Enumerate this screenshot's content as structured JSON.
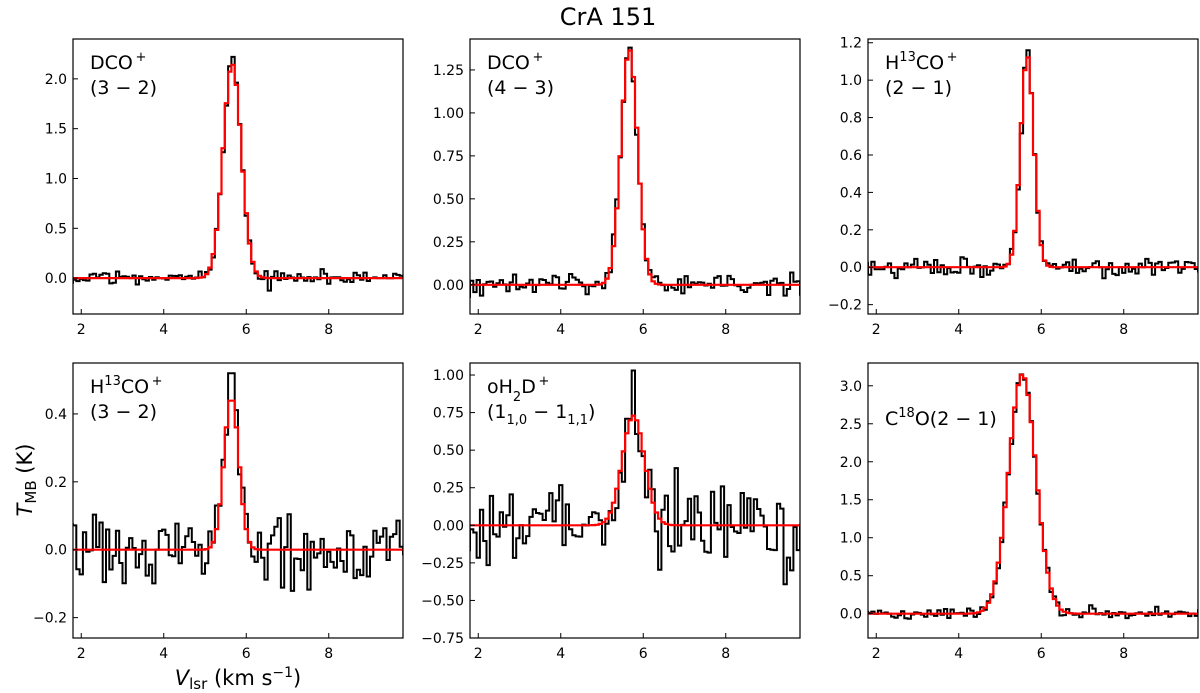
{
  "figure": {
    "title": "CrA 151",
    "xlabel_main": "V",
    "xlabel_sub": "lsr",
    "xlabel_unit": "(km s",
    "xlabel_exp": "−1",
    "xlabel_close": ")",
    "ylabel_main": "T",
    "ylabel_sub": "MB",
    "ylabel_unit": "(K)"
  },
  "chart_data": [
    {
      "type": "line",
      "molecule": "DCO⁺",
      "transition": "(3 − 2)",
      "label_parts": [
        [
          "DCO",
          0
        ],
        [
          "+",
          1
        ]
      ],
      "label_line2": "(3 − 2)",
      "xlim": [
        1.8,
        9.8
      ],
      "ylim": [
        -0.36,
        2.4
      ],
      "xticks": [
        2,
        4,
        6,
        8
      ],
      "xtick_labels": [
        "2",
        "4",
        "6",
        "8"
      ],
      "yticks": [
        0.0,
        0.5,
        1.0,
        1.5,
        2.0
      ],
      "ytick_labels": [
        "0.0",
        "0.5",
        "1.0",
        "1.5",
        "2.0"
      ],
      "center": 5.62,
      "peak": 2.15,
      "sigma": 0.22,
      "obs_peak": 2.22,
      "noise": 0.05,
      "seed": 11,
      "series": [
        {
          "name": "observed",
          "color": "#000000"
        },
        {
          "name": "fit",
          "color": "#ff0000"
        }
      ]
    },
    {
      "type": "line",
      "molecule": "DCO⁺",
      "transition": "(4 − 3)",
      "label_parts": [
        [
          "DCO",
          0
        ],
        [
          "+",
          1
        ]
      ],
      "label_line2": "(4 − 3)",
      "xlim": [
        1.8,
        9.8
      ],
      "ylim": [
        -0.17,
        1.43
      ],
      "xticks": [
        2,
        4,
        6,
        8
      ],
      "xtick_labels": [
        "2",
        "4",
        "6",
        "8"
      ],
      "yticks": [
        0.0,
        0.25,
        0.5,
        0.75,
        1.0,
        1.25
      ],
      "ytick_labels": [
        "0.00",
        "0.25",
        "0.50",
        "0.75",
        "1.00",
        "1.25"
      ],
      "center": 5.62,
      "peak": 1.37,
      "sigma": 0.2,
      "obs_peak": 1.38,
      "noise": 0.04,
      "seed": 23,
      "series": [
        {
          "name": "observed",
          "color": "#000000"
        },
        {
          "name": "fit",
          "color": "#ff0000"
        }
      ]
    },
    {
      "type": "line",
      "molecule": "H¹³CO⁺",
      "transition": "(2 − 1)",
      "label_parts": [
        [
          "H",
          0
        ],
        [
          "13",
          1
        ],
        [
          "CO",
          0
        ],
        [
          "+",
          1
        ]
      ],
      "label_line2": "(2 − 1)",
      "xlim": [
        1.8,
        9.8
      ],
      "ylim": [
        -0.25,
        1.22
      ],
      "xticks": [
        2,
        4,
        6,
        8
      ],
      "xtick_labels": [
        "2",
        "4",
        "6",
        "8"
      ],
      "yticks": [
        -0.2,
        0.0,
        0.2,
        0.4,
        0.6,
        0.8,
        1.0,
        1.2
      ],
      "ytick_labels": [
        "−0.2",
        "0.0",
        "0.2",
        "0.4",
        "0.6",
        "0.8",
        "1.0",
        "1.2"
      ],
      "center": 5.62,
      "peak": 1.13,
      "sigma": 0.16,
      "obs_peak": 1.16,
      "noise": 0.04,
      "seed": 37,
      "series": [
        {
          "name": "observed",
          "color": "#000000"
        },
        {
          "name": "fit",
          "color": "#ff0000"
        }
      ]
    },
    {
      "type": "line",
      "molecule": "H¹³CO⁺",
      "transition": "(3 − 2)",
      "label_parts": [
        [
          "H",
          0
        ],
        [
          "13",
          1
        ],
        [
          "CO",
          0
        ],
        [
          "+",
          1
        ]
      ],
      "label_line2": "(3 − 2)",
      "xlim": [
        1.8,
        9.8
      ],
      "ylim": [
        -0.26,
        0.55
      ],
      "xticks": [
        2,
        4,
        6,
        8
      ],
      "xtick_labels": [
        "2",
        "4",
        "6",
        "8"
      ],
      "yticks": [
        -0.2,
        0.0,
        0.2,
        0.4
      ],
      "ytick_labels": [
        "−0.2",
        "0.0",
        "0.2",
        "0.4"
      ],
      "center": 5.6,
      "peak": 0.45,
      "sigma": 0.18,
      "obs_peak": 0.52,
      "noise": 0.075,
      "seed": 41,
      "series": [
        {
          "name": "observed",
          "color": "#000000"
        },
        {
          "name": "fit",
          "color": "#ff0000"
        }
      ]
    },
    {
      "type": "line",
      "molecule": "oH₂D⁺",
      "transition": "(1₁,₀ − 1₁,₁)",
      "label_parts": [
        [
          "oH",
          0
        ],
        [
          "2",
          -1
        ],
        [
          "D",
          0
        ],
        [
          "+",
          1
        ]
      ],
      "label2_parts": [
        [
          "(1",
          0
        ],
        [
          "1,0",
          -1
        ],
        [
          " − 1",
          0
        ],
        [
          "1,1",
          -1
        ],
        [
          ")",
          0
        ]
      ],
      "xlim": [
        1.8,
        9.8
      ],
      "ylim": [
        -0.75,
        1.08
      ],
      "xticks": [
        2,
        4,
        6,
        8
      ],
      "xtick_labels": [
        "2",
        "4",
        "6",
        "8"
      ],
      "yticks": [
        -0.75,
        -0.5,
        -0.25,
        0.0,
        0.25,
        0.5,
        0.75,
        1.0
      ],
      "ytick_labels": [
        "−0.75",
        "−0.50",
        "−0.25",
        "0.00",
        "0.25",
        "0.50",
        "0.75",
        "1.00"
      ],
      "center": 5.72,
      "peak": 0.73,
      "sigma": 0.27,
      "obs_peak": 1.03,
      "noise": 0.2,
      "seed": 53,
      "series": [
        {
          "name": "observed",
          "color": "#000000"
        },
        {
          "name": "fit",
          "color": "#ff0000"
        }
      ]
    },
    {
      "type": "line",
      "molecule": "C¹⁸O",
      "transition": "(2 − 1)",
      "label_parts": [
        [
          "C",
          0
        ],
        [
          "18",
          1
        ],
        [
          "O(2 − 1)",
          0
        ]
      ],
      "xlim": [
        1.8,
        9.8
      ],
      "ylim": [
        -0.32,
        3.3
      ],
      "xticks": [
        2,
        4,
        6,
        8
      ],
      "xtick_labels": [
        "2",
        "4",
        "6",
        "8"
      ],
      "yticks": [
        0.0,
        0.5,
        1.0,
        1.5,
        2.0,
        2.5,
        3.0
      ],
      "ytick_labels": [
        "0.0",
        "0.5",
        "1.0",
        "1.5",
        "2.0",
        "2.5",
        "3.0"
      ],
      "center": 5.5,
      "peak": 3.15,
      "sigma": 0.33,
      "obs_peak": 3.15,
      "noise": 0.05,
      "seed": 67,
      "series": [
        {
          "name": "observed",
          "color": "#000000"
        },
        {
          "name": "fit",
          "color": "#ff0000"
        }
      ]
    }
  ]
}
